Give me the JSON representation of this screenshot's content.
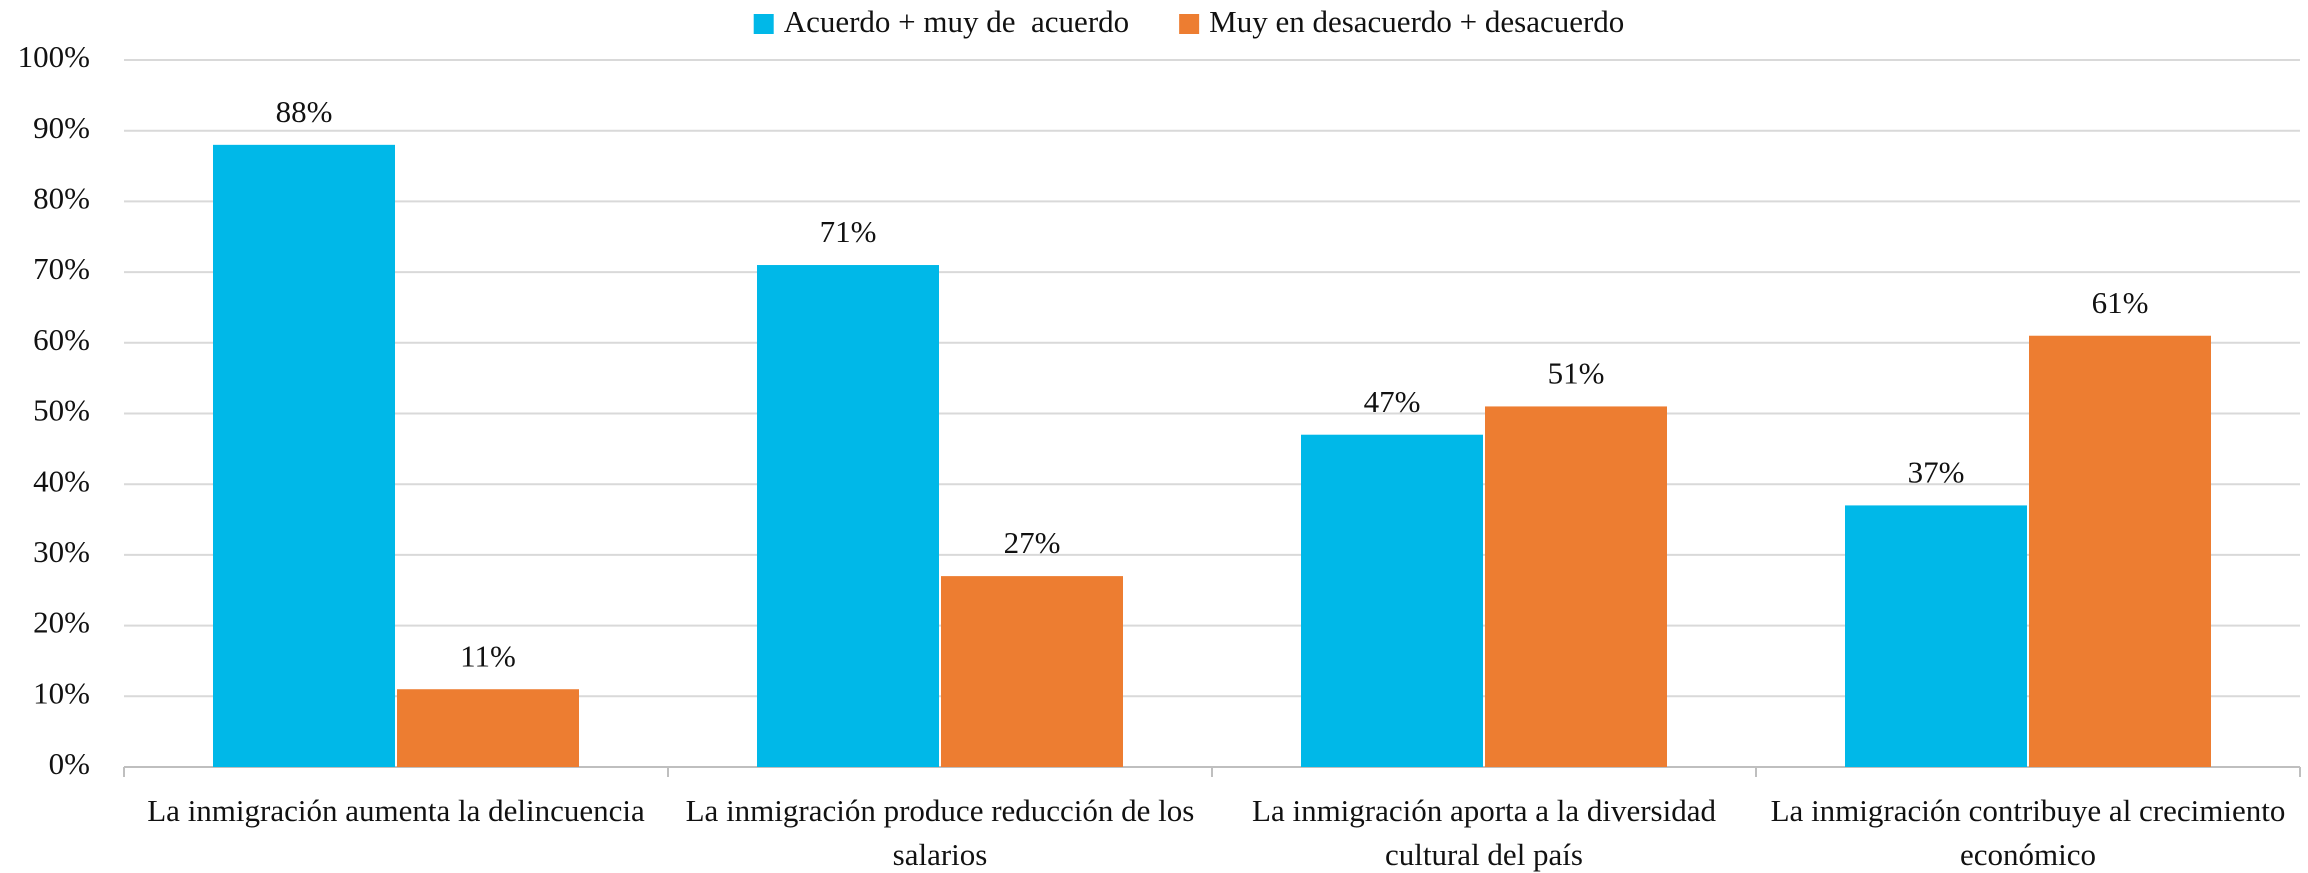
{
  "chart_data": {
    "type": "bar",
    "categories": [
      "La inmigración aumenta la delincuencia",
      "La inmigración produce reducción de los salarios",
      "La inmigración aporta a la diversidad cultural del país",
      "La inmigración contribuye al crecimiento económico"
    ],
    "series": [
      {
        "name": "Acuerdo + muy de  acuerdo",
        "color": "#00b8e8",
        "values": [
          88,
          71,
          47,
          37
        ],
        "value_labels": [
          "88%",
          "71%",
          "47%",
          "37%"
        ]
      },
      {
        "name": "Muy en desacuerdo + desacuerdo",
        "color": "#ed7d31",
        "values": [
          11,
          27,
          51,
          61
        ],
        "value_labels": [
          "11%",
          "27%",
          "51%",
          "61%"
        ]
      }
    ],
    "ylim": [
      0,
      100
    ],
    "yticks": [
      {
        "value": 0,
        "label": "0%"
      },
      {
        "value": 10,
        "label": "10%"
      },
      {
        "value": 20,
        "label": "20%"
      },
      {
        "value": 30,
        "label": "30%"
      },
      {
        "value": 40,
        "label": "40%"
      },
      {
        "value": 50,
        "label": "50%"
      },
      {
        "value": 60,
        "label": "60%"
      },
      {
        "value": 70,
        "label": "70%"
      },
      {
        "value": 80,
        "label": "80%"
      },
      {
        "value": 90,
        "label": "90%"
      },
      {
        "value": 100,
        "label": "100%"
      }
    ],
    "grid": true,
    "legend": "top"
  }
}
